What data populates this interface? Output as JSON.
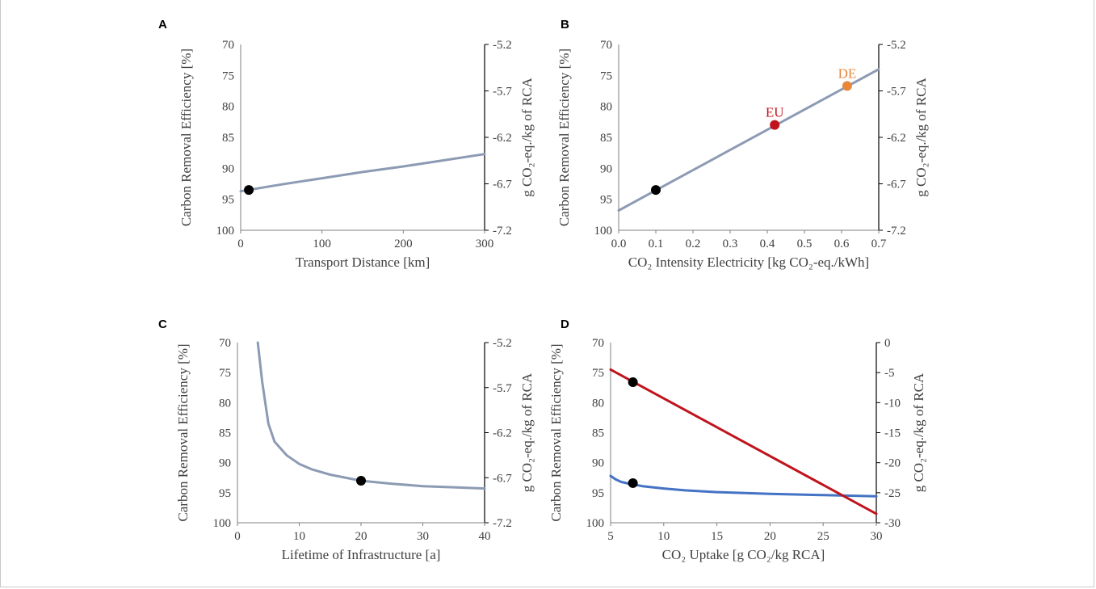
{
  "chart_data": [
    {
      "panel": "A",
      "type": "line",
      "xlabel": "Transport Distance [km]",
      "ylabel": "Carbon Removal Efficiency [%]",
      "y2label": "g CO₂-eq./kg of RCA",
      "xlim": [
        0,
        300
      ],
      "ylim": [
        100,
        70
      ],
      "y2lim": [
        -7.2,
        -5.2
      ],
      "xticks": [
        "0",
        "100",
        "200",
        "300"
      ],
      "yticks": [
        "70",
        "75",
        "80",
        "85",
        "90",
        "95",
        "100"
      ],
      "y2ticks": [
        "-5.2",
        "-5.7",
        "-6.2",
        "-6.7",
        "-7.2"
      ],
      "series": [
        {
          "color": "#8c9bb3",
          "x": [
            0,
            50,
            100,
            150,
            200,
            250,
            300
          ],
          "y": [
            93.7,
            92.6,
            91.6,
            90.6,
            89.7,
            88.7,
            87.7
          ]
        }
      ],
      "points": [
        {
          "x": 10,
          "y": 93.5,
          "color": "#000000",
          "label": ""
        }
      ]
    },
    {
      "panel": "B",
      "type": "line",
      "xlabel": "CO₂ Intensity Electricity [kg CO₂-eq./kWh]",
      "ylabel": "Carbon Removal Efficiency [%]",
      "y2label": "g CO₂-eq./kg of RCA",
      "xlim": [
        0,
        0.7
      ],
      "ylim": [
        100,
        70
      ],
      "y2lim": [
        -7.2,
        -5.2
      ],
      "xticks": [
        "0.0",
        "0.1",
        "0.2",
        "0.3",
        "0.4",
        "0.5",
        "0.6",
        "0.7"
      ],
      "yticks": [
        "70",
        "75",
        "80",
        "85",
        "90",
        "95",
        "100"
      ],
      "y2ticks": [
        "-5.2",
        "-5.7",
        "-6.2",
        "-6.7",
        "-7.2"
      ],
      "series": [
        {
          "color": "#8c9bb3",
          "x": [
            0,
            0.7
          ],
          "y": [
            96.8,
            74.0
          ]
        }
      ],
      "points": [
        {
          "x": 0.1,
          "y": 93.5,
          "color": "#000000",
          "label": ""
        },
        {
          "x": 0.42,
          "y": 83.0,
          "color": "#c0141c",
          "label": "EU"
        },
        {
          "x": 0.615,
          "y": 76.7,
          "color": "#e8863a",
          "label": "DE"
        }
      ]
    },
    {
      "panel": "C",
      "type": "line",
      "xlabel": "Lifetime of Infrastructure [a]",
      "ylabel": "Carbon Removal Efficiency [%]",
      "y2label": "g CO₂-eq./kg of RCA",
      "xlim": [
        0,
        40
      ],
      "ylim": [
        100,
        70
      ],
      "y2lim": [
        -7.2,
        -5.2
      ],
      "xticks": [
        "0",
        "10",
        "20",
        "30",
        "40"
      ],
      "yticks": [
        "70",
        "75",
        "80",
        "85",
        "90",
        "95",
        "100"
      ],
      "y2ticks": [
        "-5.2",
        "-5.7",
        "-6.2",
        "-6.7",
        "-7.2"
      ],
      "series": [
        {
          "color": "#8c9bb3",
          "x": [
            3.3,
            4,
            5,
            6,
            8,
            10,
            12,
            15,
            20,
            25,
            30,
            35,
            40
          ],
          "y": [
            70,
            76.5,
            83.5,
            86.5,
            88.8,
            90.2,
            91.1,
            92.0,
            93.0,
            93.5,
            93.9,
            94.1,
            94.3
          ]
        }
      ],
      "points": [
        {
          "x": 20,
          "y": 93.0,
          "color": "#000000",
          "label": ""
        }
      ]
    },
    {
      "panel": "D",
      "type": "line",
      "xlabel": "CO₂ Uptake [g CO₂/kg RCA]",
      "ylabel": "Carbon Removal Efficiency [%]",
      "y2label": "g CO₂-eq./kg of RCA",
      "xlim": [
        5,
        30
      ],
      "ylim": [
        100,
        70
      ],
      "y2lim": [
        -30,
        0
      ],
      "xticks": [
        "5",
        "10",
        "15",
        "20",
        "25",
        "30"
      ],
      "yticks": [
        "70",
        "75",
        "80",
        "85",
        "90",
        "95",
        "100"
      ],
      "y2ticks": [
        "0",
        "-5",
        "-10",
        "-15",
        "-20",
        "-25",
        "-30"
      ],
      "series": [
        {
          "color": "#4472c4",
          "axis": "left",
          "x": [
            5,
            5.5,
            6,
            7,
            8,
            10,
            12,
            15,
            20,
            25,
            30
          ],
          "y": [
            92.2,
            92.8,
            93.2,
            93.6,
            93.9,
            94.3,
            94.6,
            94.9,
            95.2,
            95.4,
            95.6
          ]
        },
        {
          "color": "#c0141c",
          "axis": "right",
          "x": [
            5,
            30
          ],
          "y": [
            -4.5,
            -28.5
          ]
        }
      ],
      "points": [
        {
          "x": 7.1,
          "y": 93.4,
          "color": "#000000",
          "label": "",
          "axis": "left"
        },
        {
          "x": 7.1,
          "y": -6.6,
          "color": "#000000",
          "label": "",
          "axis": "right"
        }
      ]
    }
  ]
}
